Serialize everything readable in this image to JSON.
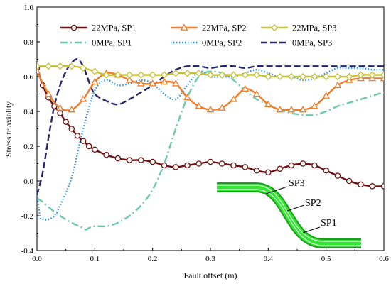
{
  "chart_data": {
    "type": "line",
    "xlabel": "Fault offset (m)",
    "ylabel": "Stress triaxiality",
    "xlim": [
      0,
      0.6
    ],
    "ylim": [
      -0.4,
      1.0
    ],
    "x_ticks": [
      "0.0",
      "0.1",
      "0.2",
      "0.3",
      "0.4",
      "0.5",
      "0.6"
    ],
    "y_ticks": [
      "-0.4",
      "-0.2",
      "0.0",
      "0.2",
      "0.4",
      "0.6",
      "0.8",
      "1.0"
    ],
    "grid": false,
    "legend_position": "top",
    "series": [
      {
        "name": "22MPa, SP1",
        "color": "#6b0f0f",
        "style": "solid",
        "marker": "circle",
        "x": [
          0,
          0.01,
          0.02,
          0.03,
          0.04,
          0.05,
          0.06,
          0.07,
          0.08,
          0.09,
          0.1,
          0.12,
          0.14,
          0.16,
          0.18,
          0.2,
          0.22,
          0.24,
          0.26,
          0.28,
          0.3,
          0.32,
          0.34,
          0.36,
          0.38,
          0.4,
          0.42,
          0.44,
          0.46,
          0.48,
          0.5,
          0.52,
          0.54,
          0.56,
          0.58,
          0.6
        ],
        "y": [
          0.65,
          0.55,
          0.48,
          0.43,
          0.39,
          0.34,
          0.3,
          0.26,
          0.23,
          0.2,
          0.18,
          0.15,
          0.13,
          0.12,
          0.12,
          0.11,
          0.09,
          0.08,
          0.09,
          0.1,
          0.11,
          0.1,
          0.09,
          0.08,
          0.06,
          0.05,
          0.07,
          0.09,
          0.1,
          0.09,
          0.06,
          0.03,
          0.0,
          -0.02,
          -0.03,
          -0.03
        ]
      },
      {
        "name": "22MPa, SP2",
        "color": "#f07b28",
        "style": "solid",
        "marker": "triangle",
        "x": [
          0,
          0.02,
          0.04,
          0.06,
          0.08,
          0.1,
          0.12,
          0.14,
          0.16,
          0.18,
          0.2,
          0.22,
          0.24,
          0.26,
          0.28,
          0.3,
          0.32,
          0.34,
          0.36,
          0.38,
          0.4,
          0.42,
          0.44,
          0.46,
          0.48,
          0.5,
          0.52,
          0.54,
          0.56,
          0.58,
          0.6
        ],
        "y": [
          0.63,
          0.5,
          0.42,
          0.41,
          0.47,
          0.57,
          0.62,
          0.61,
          0.58,
          0.56,
          0.56,
          0.57,
          0.56,
          0.48,
          0.43,
          0.41,
          0.42,
          0.47,
          0.53,
          0.5,
          0.44,
          0.41,
          0.41,
          0.41,
          0.43,
          0.49,
          0.55,
          0.58,
          0.59,
          0.59,
          0.59
        ]
      },
      {
        "name": "22MPa, SP3",
        "color": "#c6bf32",
        "style": "solid",
        "marker": "diamond",
        "x": [
          0,
          0.02,
          0.04,
          0.06,
          0.08,
          0.1,
          0.12,
          0.14,
          0.16,
          0.18,
          0.2,
          0.22,
          0.24,
          0.26,
          0.28,
          0.3,
          0.32,
          0.34,
          0.36,
          0.38,
          0.4,
          0.42,
          0.44,
          0.46,
          0.48,
          0.5,
          0.52,
          0.54,
          0.56,
          0.58,
          0.6
        ],
        "y": [
          0.66,
          0.66,
          0.66,
          0.66,
          0.65,
          0.63,
          0.61,
          0.61,
          0.61,
          0.61,
          0.61,
          0.61,
          0.62,
          0.62,
          0.62,
          0.61,
          0.61,
          0.61,
          0.61,
          0.61,
          0.6,
          0.6,
          0.6,
          0.6,
          0.6,
          0.6,
          0.6,
          0.6,
          0.61,
          0.61,
          0.61
        ]
      },
      {
        "name": "0MPa, SP1",
        "color": "#6ccaab",
        "style": "dashdot",
        "marker": "none",
        "x": [
          0,
          0.01,
          0.02,
          0.04,
          0.06,
          0.08,
          0.085,
          0.09,
          0.1,
          0.12,
          0.14,
          0.16,
          0.18,
          0.2,
          0.22,
          0.24,
          0.26,
          0.28,
          0.3,
          0.32,
          0.34,
          0.36,
          0.38,
          0.4,
          0.42,
          0.44,
          0.46,
          0.48,
          0.5,
          0.52,
          0.54,
          0.56,
          0.58,
          0.6
        ],
        "y": [
          -0.1,
          -0.12,
          -0.15,
          -0.2,
          -0.24,
          -0.27,
          -0.28,
          -0.27,
          -0.26,
          -0.26,
          -0.24,
          -0.2,
          -0.14,
          -0.05,
          0.1,
          0.3,
          0.48,
          0.6,
          0.63,
          0.62,
          0.58,
          0.52,
          0.47,
          0.44,
          0.41,
          0.39,
          0.38,
          0.38,
          0.4,
          0.43,
          0.45,
          0.47,
          0.49,
          0.51
        ]
      },
      {
        "name": "0MPa, SP2",
        "color": "#2f8fe0",
        "style": "dotted",
        "marker": "none",
        "x": [
          0,
          0.005,
          0.01,
          0.02,
          0.03,
          0.04,
          0.06,
          0.08,
          0.1,
          0.12,
          0.14,
          0.16,
          0.18,
          0.2,
          0.22,
          0.24,
          0.26,
          0.28,
          0.3,
          0.32,
          0.34,
          0.36,
          0.38,
          0.4,
          0.42,
          0.44,
          0.46,
          0.48,
          0.5,
          0.52,
          0.54,
          0.56,
          0.58,
          0.6
        ],
        "y": [
          -0.05,
          -0.2,
          -0.22,
          -0.22,
          -0.2,
          -0.14,
          0.02,
          0.3,
          0.52,
          0.58,
          0.55,
          0.56,
          0.58,
          0.56,
          0.5,
          0.47,
          0.55,
          0.63,
          0.6,
          0.6,
          0.6,
          0.62,
          0.64,
          0.62,
          0.6,
          0.6,
          0.58,
          0.59,
          0.62,
          0.65,
          0.65,
          0.65,
          0.64,
          0.64
        ]
      },
      {
        "name": "0MPa, SP3",
        "color": "#26266e",
        "style": "dashed",
        "marker": "none",
        "x": [
          0,
          0.01,
          0.02,
          0.03,
          0.04,
          0.05,
          0.06,
          0.07,
          0.08,
          0.09,
          0.1,
          0.12,
          0.14,
          0.16,
          0.18,
          0.2,
          0.22,
          0.24,
          0.26,
          0.28,
          0.3,
          0.32,
          0.34,
          0.36,
          0.38,
          0.4,
          0.42,
          0.44,
          0.46,
          0.48,
          0.5,
          0.52,
          0.54,
          0.56,
          0.58,
          0.6
        ],
        "y": [
          -0.08,
          0.05,
          0.25,
          0.43,
          0.55,
          0.63,
          0.68,
          0.7,
          0.66,
          0.57,
          0.5,
          0.46,
          0.44,
          0.47,
          0.51,
          0.55,
          0.6,
          0.64,
          0.66,
          0.66,
          0.65,
          0.66,
          0.66,
          0.65,
          0.66,
          0.66,
          0.66,
          0.66,
          0.66,
          0.66,
          0.66,
          0.66,
          0.66,
          0.66,
          0.66,
          0.66
        ]
      }
    ],
    "annotations": [
      "SP3",
      "SP2",
      "SP1"
    ]
  }
}
